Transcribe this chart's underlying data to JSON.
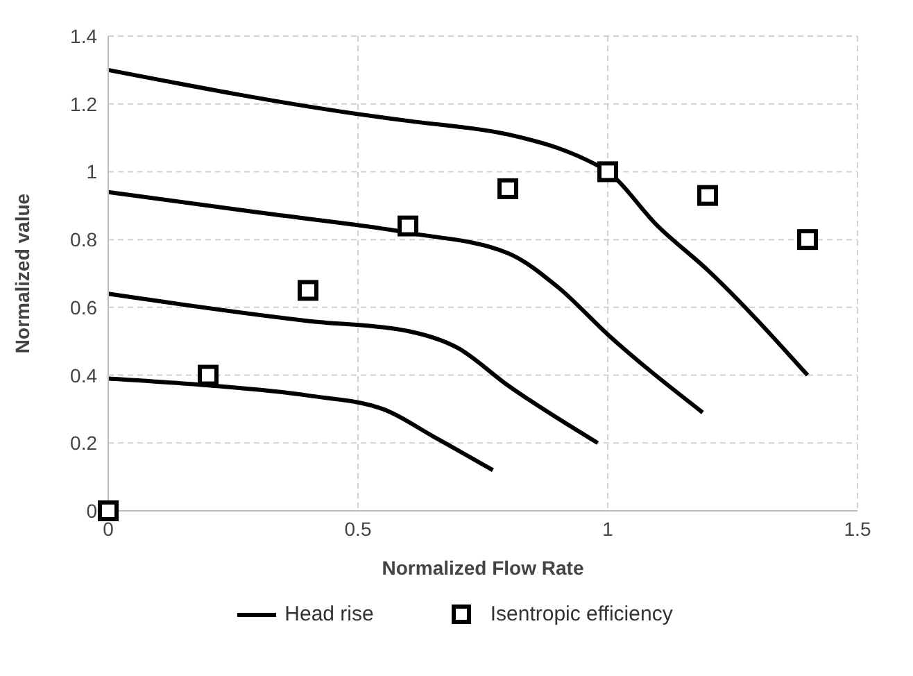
{
  "chart_data": {
    "type": "line",
    "xlabel": "Normalized Flow Rate",
    "ylabel": "Normalized value",
    "xlim": [
      0,
      1.5
    ],
    "xticks": [
      0,
      0.5,
      1,
      1.5
    ],
    "ylim": [
      0,
      1.4
    ],
    "yticks": [
      0,
      0.2,
      0.4,
      0.6,
      0.8,
      1,
      1.2,
      1.4
    ],
    "grid": true,
    "legend": "bottom",
    "line_style": "solid",
    "series": [
      {
        "name": "Head rise",
        "color": "#000000",
        "marker": "none",
        "x": [
          0,
          0.5,
          0.6,
          0.8,
          0.9,
          0.95,
          1,
          1.1,
          1.2,
          1.4
        ],
        "values": [
          1.3,
          1.17,
          1.15,
          1.11,
          1.07,
          1.04,
          1,
          0.84,
          0.71,
          0.4
        ]
      },
      {
        "color": "#000000",
        "marker": "none",
        "x": [
          0,
          0.3,
          0.6,
          0.8,
          0.9,
          1,
          1.19
        ],
        "values": [
          0.94,
          0.88,
          0.82,
          0.76,
          0.66,
          0.52,
          0.29
        ]
      },
      {
        "color": "#000000",
        "marker": "none",
        "x": [
          0,
          0.4,
          0.6,
          0.7,
          0.8,
          0.98
        ],
        "values": [
          0.64,
          0.56,
          0.53,
          0.48,
          0.37,
          0.2
        ]
      },
      {
        "color": "#000000",
        "marker": "none",
        "x": [
          0,
          0.2,
          0.4,
          0.55,
          0.65,
          0.77
        ],
        "values": [
          0.39,
          0.37,
          0.34,
          0.3,
          0.22,
          0.12
        ]
      },
      {
        "name": "Isentropic efficiency",
        "type": "scatter",
        "color": "#000000",
        "marker": "square",
        "x": [
          0,
          0.2,
          0.4,
          0.6,
          0.8,
          1,
          1.2,
          1.4
        ],
        "values": [
          0,
          0.4,
          0.65,
          0.84,
          0.95,
          1,
          0.93,
          0.8
        ]
      }
    ]
  }
}
